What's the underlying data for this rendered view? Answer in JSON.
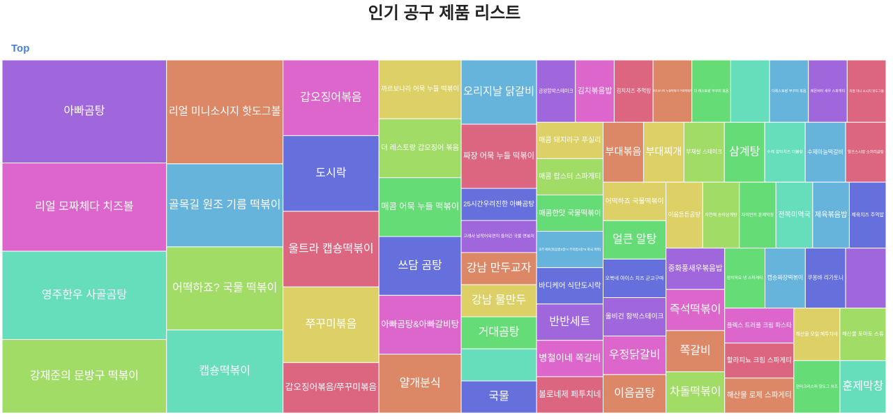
{
  "chart_data": {
    "type": "treemap",
    "title": "인기 공구 제품 리스트",
    "pathbar": "Top",
    "categories": [
      "아빠곰탕",
      "리얼 모짜체다 치즈볼",
      "영주한우 사골곰탕",
      "강재준의 문방구 떡볶이",
      "리얼 미니소시지 핫도그볼",
      "골목길 원조 기름 떡볶이",
      "어떡하죠? 국물 떡볶이",
      "캡숑떡볶이",
      "갑오징어볶음",
      "도시락",
      "울트라 캡숑떡볶이",
      "쭈꾸미볶음",
      "갑오징어볶음/쭈꾸미볶음",
      "까르보나라 어묵 누들 떡볶이",
      "더 레스토랑 갑오징어 볶음",
      "매콤 어묵 누들 떡볶이",
      "쓰담 곰탕",
      "아빠곰탕&아빠갈비탕",
      "얄개분식",
      "오리지날 닭갈비",
      "짜장 어묵 누들 떡볶이",
      "25시간우려진한 아빠곰탕",
      "고래사 남작어묵면이 들어간 국물 면볶이",
      "강남 만두교자",
      "강남 물만두",
      "거대곰탕",
      null,
      "국물",
      "금왕함박스테이크",
      "김치볶음밥",
      "김치치즈 주먹밥",
      "까르보나라 누들떡볶이 어묵떡볶이",
      "더 레스토랑 쭈꾸미 볶음",
      null,
      "더레스토랑 부꾸미 볶음",
      "레몬버터 새우 스파게티",
      "리얼 미니 소시지 핫도그볼",
      "매콤 돼지라구 푸실리",
      "매콤 랍스터 스파게티",
      "매콤한맛 국물떡볶이",
      "모두세트(볶음밥3종*4 주먹밥2종*6 회국 파파)",
      "바디케어 식단도시락",
      "반반세트",
      "병철이네 쪽갈비",
      "볼로네제 페투치네",
      "부대볶음",
      "부대찌개",
      "부채살 스테이크",
      "삼계탕",
      "수제 함박치즈 더블링",
      "수제마늘떡갈비",
      "알프스시장 소머리곰탕",
      "어떡하죠 국물떡볶이",
      "얼큰 알탕",
      "오복네 아이스 치즈 군고구마",
      "올비건 함박스테이크",
      "우정닭갈비",
      "이음곰탕",
      "이음튼튼곰탕",
      "자연애 송이삼계탕",
      "자이언트 훈제막창",
      "전복미역국",
      "제육볶음밥",
      "제육치즈 주먹밥",
      "중화풍새우볶음밥",
      "즉석떡볶이",
      "쪽갈비",
      "차돌떡볶이",
      "참치마요 냉 스파게티",
      "캡숑짜장떡볶이",
      "쿠옹바 리가토니",
      null,
      "플렉스 트러플 크림 파스타",
      "할라피뇨 크림 스파게티",
      "해산물 로제 스파게티",
      "해산물 오일 페투치네",
      "해산물 토마토 스튜",
      "현미크리스피 핫도그 치즈",
      "훈제막창"
    ],
    "values": [
      7,
      6,
      6,
      5,
      5,
      4,
      4,
      4,
      3,
      3,
      3,
      3,
      2,
      2,
      2,
      2,
      2,
      2,
      2,
      2,
      2,
      1,
      1,
      1,
      1,
      1,
      1,
      1,
      1,
      1,
      1,
      1,
      1,
      1,
      1,
      1,
      1,
      1,
      1,
      1,
      1,
      1,
      1,
      1,
      1,
      1,
      1,
      1,
      1,
      1,
      1,
      1,
      1,
      1,
      1,
      1,
      1,
      1,
      1,
      1,
      1,
      1,
      1,
      1,
      1,
      1,
      1,
      1,
      1,
      1,
      1,
      1,
      1,
      1,
      1,
      1,
      1,
      1,
      1
    ],
    "colors": [
      "#a066dc",
      "#dc66cc",
      "#66ddbb",
      "#a0dc66",
      "#dc8866",
      "#66b3dc",
      "#a0dc66",
      "#66ddbb",
      "#dc66cc",
      "#6670dc",
      "#dc6680",
      "#dcd066",
      "#dc6680",
      "#dcd066",
      "#a0dc66",
      "#66dc77",
      "#6670dc",
      "#dc66cc",
      "#dc8866",
      "#66b3dc",
      "#dc6680",
      "#6670dc",
      "#a066dc",
      "#dc8866",
      "#dcd066",
      "#66dc77",
      "#66ddbb",
      "#6670dc",
      "#a066dc",
      "#dc66cc",
      "#dc6680",
      "#dc8866",
      "#66dc77",
      "#66ddbb",
      "#66b3dc",
      "#a066dc",
      "#dc6680",
      "#dcd066",
      "#a0dc66",
      "#66dc77",
      "#66b3dc",
      "#6670dc",
      "#a066dc",
      "#dc66cc",
      "#dc6680",
      "#dc8866",
      "#dcd066",
      "#a0dc66",
      "#66dc77",
      "#66ddbb",
      "#66b3dc",
      "#dc6680",
      "#dcd066",
      "#66dc77",
      "#6670dc",
      "#a066dc",
      "#dc66cc",
      "#dc8866",
      "#dcd066",
      "#a0dc66",
      "#66dc77",
      "#66ddbb",
      "#66b3dc",
      "#6670dc",
      "#a066dc",
      "#dc66cc",
      "#dc8866",
      "#a0dc66",
      "#66dc77",
      "#66b3dc",
      "#6670dc",
      "#a066dc",
      "#dc66cc",
      "#dc6680",
      "#dc8866",
      "#dcd066",
      "#a0dc66",
      "#66dc77",
      "#66ddbb"
    ]
  }
}
